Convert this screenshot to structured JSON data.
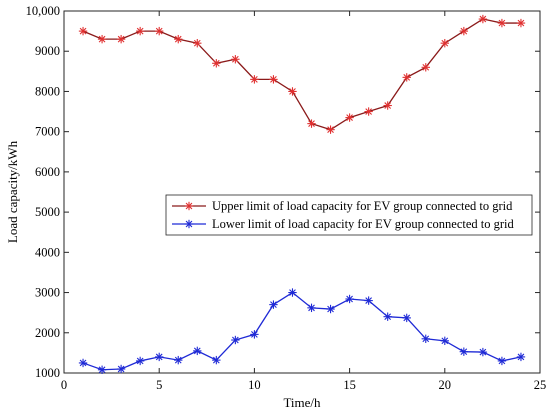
{
  "chart_data": {
    "type": "line",
    "xlabel": "Time/h",
    "ylabel": "Load capacity/kWh",
    "xlim": [
      0,
      25
    ],
    "ylim": [
      1000,
      10000
    ],
    "xticks": [
      0,
      5,
      10,
      15,
      20,
      25
    ],
    "xtick_labels": [
      "0",
      "5",
      "10",
      "15",
      "20",
      "25"
    ],
    "yticks": [
      1000,
      2000,
      3000,
      4000,
      5000,
      6000,
      7000,
      8000,
      9000,
      10000
    ],
    "ytick_labels": [
      "1000",
      "2000",
      "3000",
      "4000",
      "5000",
      "6000",
      "7000",
      "8000",
      "9000",
      "10,000"
    ],
    "grid": false,
    "legend_position": "center-right",
    "x": [
      1,
      2,
      3,
      4,
      5,
      6,
      7,
      8,
      9,
      10,
      11,
      12,
      13,
      14,
      15,
      16,
      17,
      18,
      19,
      20,
      21,
      22,
      23,
      24
    ],
    "series": [
      {
        "name": "Upper limit of load capacity for EV group connected to grid",
        "color": "#8b1a1a",
        "marker_color": "#e03030",
        "marker": "asterisk",
        "values": [
          9500,
          9300,
          9300,
          9500,
          9500,
          9300,
          9200,
          8700,
          8800,
          8300,
          8300,
          8000,
          7200,
          7050,
          7350,
          7500,
          7650,
          8350,
          8600,
          9200,
          9500,
          9800,
          9700,
          9700
        ]
      },
      {
        "name": "Lower limit of load capacity for EV group connected to grid",
        "color": "#1f2ad6",
        "marker_color": "#1f2ad6",
        "marker": "asterisk",
        "values": [
          1250,
          1080,
          1100,
          1300,
          1400,
          1320,
          1550,
          1320,
          1820,
          1960,
          2700,
          3000,
          2620,
          2590,
          2840,
          2800,
          2400,
          2370,
          1850,
          1800,
          1530,
          1520,
          1300,
          1400
        ]
      }
    ]
  }
}
